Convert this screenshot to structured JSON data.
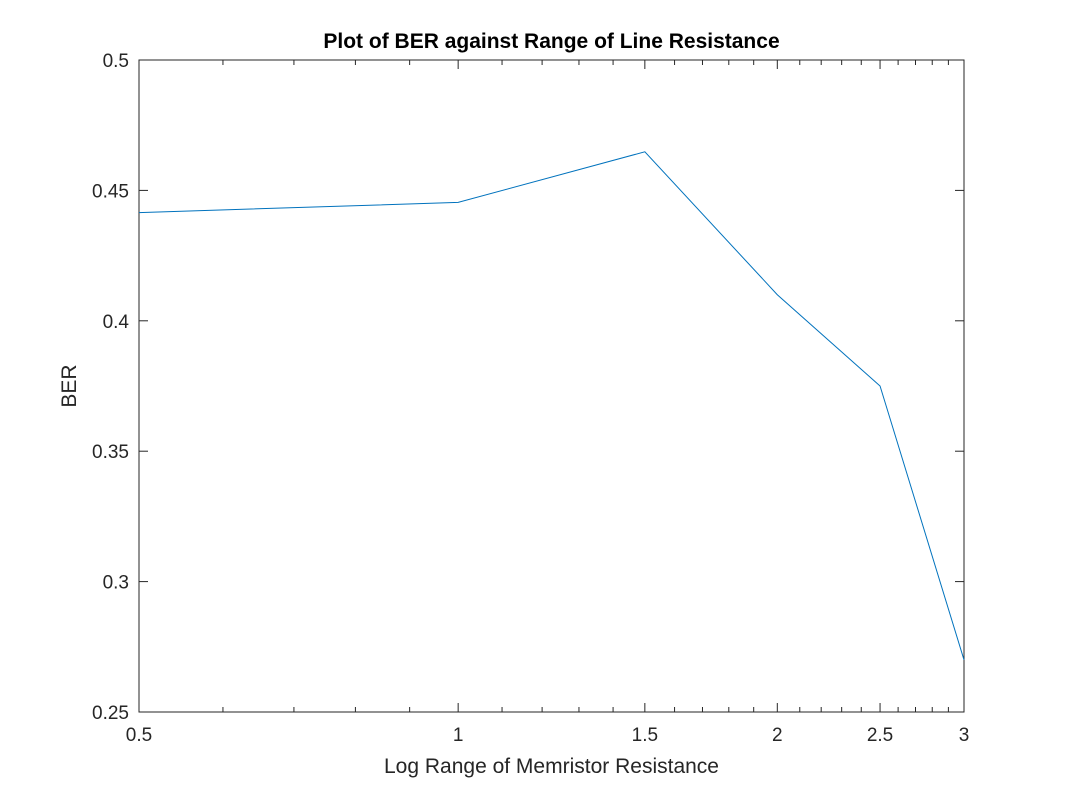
{
  "chart_data": {
    "type": "line",
    "title": "Plot of BER against Range of Line Resistance",
    "xlabel": "Log Range of Memristor Resistance",
    "ylabel": "BER",
    "x_scale": "log",
    "xlim": [
      0.5,
      3
    ],
    "ylim": [
      0.25,
      0.5
    ],
    "xticks": [
      0.5,
      1,
      1.5,
      2,
      2.5,
      3
    ],
    "xtick_labels": [
      "0.5",
      "1",
      "1.5",
      "2",
      "2.5",
      "3"
    ],
    "yticks": [
      0.25,
      0.3,
      0.35,
      0.4,
      0.45,
      0.5
    ],
    "ytick_labels": [
      "0.25",
      "0.3",
      "0.35",
      "0.4",
      "0.45",
      "0.5"
    ],
    "grid": false,
    "series": [
      {
        "color": "#0072BD",
        "x": [
          0.5,
          1,
          1.5,
          2,
          2.5,
          3
        ],
        "y": [
          0.4415,
          0.4454,
          0.4648,
          0.41,
          0.375,
          0.27
        ]
      }
    ]
  }
}
